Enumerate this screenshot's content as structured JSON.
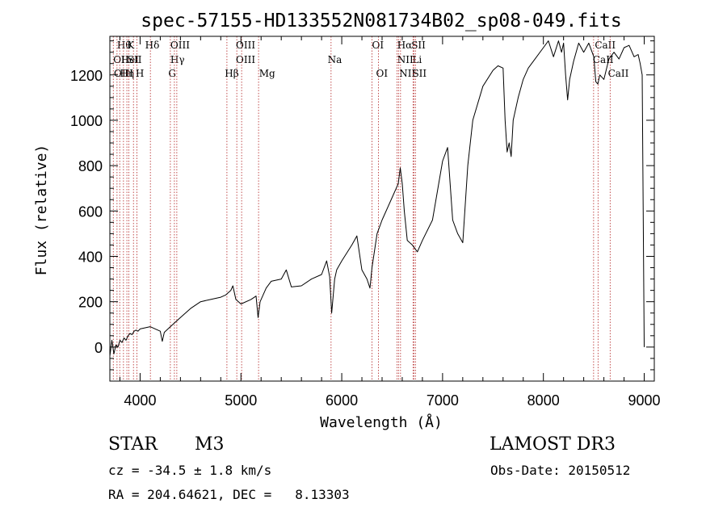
{
  "chart_data": {
    "type": "line",
    "title": "spec-57155-HD133552N081734B02_sp08-049.fits",
    "xlabel": "Wavelength (Å)",
    "ylabel": "Flux (relative)",
    "xlim": [
      3700,
      9100
    ],
    "ylim": [
      -150,
      1370
    ],
    "x_ticks": [
      {
        "value": 4000,
        "label": "4000"
      },
      {
        "value": 5000,
        "label": "5000"
      },
      {
        "value": 6000,
        "label": "6000"
      },
      {
        "value": 7000,
        "label": "7000"
      },
      {
        "value": 8000,
        "label": "8000"
      },
      {
        "value": 9000,
        "label": "9000"
      }
    ],
    "y_ticks": [
      {
        "value": 0,
        "label": "0"
      },
      {
        "value": 200,
        "label": "200"
      },
      {
        "value": 400,
        "label": "400"
      },
      {
        "value": 600,
        "label": "600"
      },
      {
        "value": 800,
        "label": "800"
      },
      {
        "value": 1000,
        "label": "1000"
      },
      {
        "value": 1200,
        "label": "1200"
      }
    ],
    "line_color": "#b22222",
    "spectrum": {
      "name": "flux",
      "x": [
        3700,
        3720,
        3740,
        3760,
        3780,
        3800,
        3820,
        3840,
        3860,
        3880,
        3900,
        3920,
        3940,
        3960,
        3980,
        4000,
        4050,
        4100,
        4150,
        4200,
        4220,
        4240,
        4300,
        4400,
        4500,
        4600,
        4700,
        4800,
        4850,
        4900,
        4920,
        4950,
        5000,
        5100,
        5150,
        5170,
        5190,
        5250,
        5300,
        5400,
        5450,
        5500,
        5600,
        5700,
        5800,
        5850,
        5880,
        5900,
        5930,
        5950,
        6000,
        6100,
        6150,
        6200,
        6250,
        6280,
        6300,
        6350,
        6400,
        6500,
        6560,
        6580,
        6600,
        6620,
        6650,
        6700,
        6750,
        6800,
        6900,
        7000,
        7050,
        7100,
        7150,
        7200,
        7250,
        7300,
        7400,
        7500,
        7550,
        7600,
        7620,
        7640,
        7660,
        7680,
        7700,
        7750,
        7800,
        7850,
        7900,
        8000,
        8050,
        8100,
        8150,
        8180,
        8200,
        8220,
        8240,
        8260,
        8300,
        8350,
        8400,
        8450,
        8500,
        8520,
        8540,
        8560,
        8600,
        8650,
        8700,
        8750,
        8800,
        8850,
        8900,
        8940,
        8960,
        8980,
        9000
      ],
      "values": [
        -40,
        30,
        -30,
        10,
        0,
        30,
        20,
        40,
        30,
        50,
        60,
        55,
        70,
        75,
        70,
        80,
        85,
        90,
        80,
        70,
        25,
        65,
        90,
        130,
        170,
        200,
        210,
        220,
        230,
        250,
        270,
        210,
        190,
        210,
        225,
        130,
        200,
        260,
        290,
        300,
        340,
        265,
        270,
        300,
        320,
        380,
        310,
        150,
        300,
        340,
        380,
        450,
        490,
        340,
        300,
        260,
        350,
        500,
        560,
        660,
        720,
        790,
        720,
        600,
        470,
        450,
        420,
        470,
        560,
        820,
        880,
        560,
        500,
        460,
        800,
        1000,
        1150,
        1220,
        1240,
        1230,
        1000,
        860,
        900,
        840,
        1000,
        1100,
        1180,
        1230,
        1260,
        1320,
        1350,
        1280,
        1350,
        1300,
        1340,
        1200,
        1090,
        1180,
        1260,
        1340,
        1300,
        1340,
        1280,
        1170,
        1160,
        1200,
        1180,
        1270,
        1300,
        1270,
        1320,
        1330,
        1280,
        1290,
        1250,
        1200,
        0
      ]
    },
    "line_markers": [
      {
        "wavelength": 3734,
        "row": 1,
        "label": "OII",
        "label_wavelength": 3734
      },
      {
        "wavelength": 3771,
        "row": 0,
        "label": "Hθ",
        "label_wavelength": 3771
      },
      {
        "wavelength": 3798,
        "row": 2,
        "label": "OIII",
        "label_wavelength": 3740
      },
      {
        "wavelength": 3835,
        "row": 2,
        "label": "Hη",
        "label_wavelength": 3800
      },
      {
        "wavelength": 3869,
        "row": 1,
        "label": "HeI",
        "label_wavelength": 3810
      },
      {
        "wavelength": 3889,
        "row": 1,
        "label": "SII",
        "label_wavelength": 3875
      },
      {
        "wavelength": 3934,
        "row": 0,
        "label": "K",
        "label_wavelength": 3870
      },
      {
        "wavelength": 3969,
        "row": 2,
        "label": "H",
        "label_wavelength": 3955
      },
      {
        "wavelength": 4102,
        "row": 0,
        "label": "Hδ",
        "label_wavelength": 4050
      },
      {
        "wavelength": 4300,
        "row": 2,
        "label": "G",
        "label_wavelength": 4280
      },
      {
        "wavelength": 4340,
        "row": 1,
        "label": "Hγ",
        "label_wavelength": 4300
      },
      {
        "wavelength": 4364,
        "row": 0,
        "label": "OIII",
        "label_wavelength": 4300
      },
      {
        "wavelength": 4861,
        "row": 2,
        "label": "Hβ",
        "label_wavelength": 4840
      },
      {
        "wavelength": 4959,
        "row": 1,
        "label": "OIII",
        "label_wavelength": 4950
      },
      {
        "wavelength": 5007,
        "row": 0,
        "label": "OIII",
        "label_wavelength": 4950
      },
      {
        "wavelength": 5175,
        "row": 2,
        "label": "Mg",
        "label_wavelength": 5180
      },
      {
        "wavelength": 5894,
        "row": 1,
        "label": "Na",
        "label_wavelength": 5860
      },
      {
        "wavelength": 6300,
        "row": 0,
        "label": "OI",
        "label_wavelength": 6300
      },
      {
        "wavelength": 6364,
        "row": 2,
        "label": "OI",
        "label_wavelength": 6340
      },
      {
        "wavelength": 6548,
        "row": 1,
        "label": "NII",
        "label_wavelength": 6550
      },
      {
        "wavelength": 6563,
        "row": 0,
        "label": "Hα",
        "label_wavelength": 6550
      },
      {
        "wavelength": 6583,
        "row": 2,
        "label": "NII",
        "label_wavelength": 6570
      },
      {
        "wavelength": 6707,
        "row": 1,
        "label": "Li",
        "label_wavelength": 6700
      },
      {
        "wavelength": 6716,
        "row": 0,
        "label": "SII",
        "label_wavelength": 6690
      },
      {
        "wavelength": 6731,
        "row": 2,
        "label": "SII",
        "label_wavelength": 6700
      },
      {
        "wavelength": 8498,
        "row": 1,
        "label": "CaII",
        "label_wavelength": 8490
      },
      {
        "wavelength": 8542,
        "row": 0,
        "label": "CaII",
        "label_wavelength": 8510
      },
      {
        "wavelength": 8662,
        "row": 2,
        "label": "CaII",
        "label_wavelength": 8640
      }
    ]
  },
  "info": {
    "object_class": "STAR",
    "subclass": "M3",
    "survey": "LAMOST DR3",
    "redshift": "cz = -34.5 ± 1.8 km/s",
    "obs_date": "Obs-Date: 20150512",
    "coords": "RA = 204.64621, DEC =   8.13303"
  }
}
